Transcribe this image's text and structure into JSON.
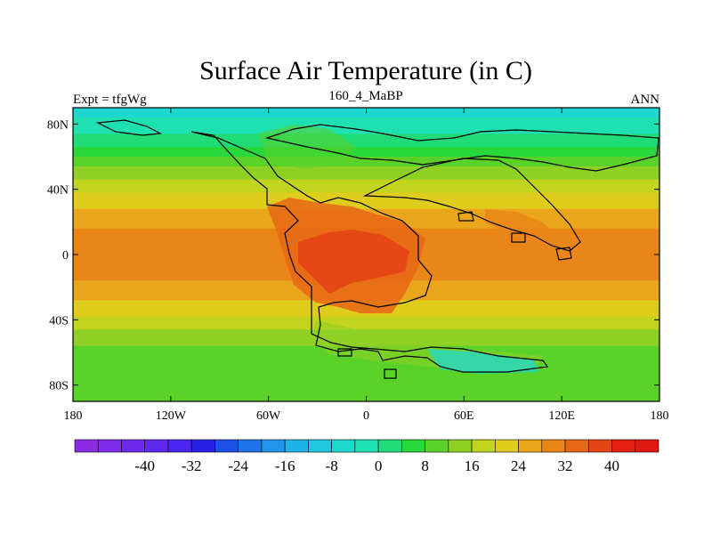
{
  "chart_data": {
    "type": "heatmap",
    "title": "Surface Air Temperature (in C)",
    "left_string": "Expt = tfgWg",
    "center_string": "160_4_MaBP",
    "right_string": "ANN",
    "x_ticks": [
      "180",
      "120W",
      "60W",
      "0",
      "60E",
      "120E",
      "180"
    ],
    "x_tick_values": [
      -180,
      -120,
      -60,
      0,
      60,
      120,
      180
    ],
    "y_ticks": [
      "80N",
      "40N",
      "0",
      "40S",
      "80S"
    ],
    "y_tick_values": [
      80,
      40,
      0,
      -40,
      -80
    ],
    "xlim": [
      -180,
      180
    ],
    "ylim": [
      -90,
      90
    ],
    "colorbar": {
      "labels": [
        "-40",
        "-32",
        "-24",
        "-16",
        "-8",
        "0",
        "8",
        "16",
        "24",
        "32",
        "40"
      ],
      "label_values": [
        -40,
        -32,
        -24,
        -16,
        -8,
        0,
        8,
        16,
        24,
        32,
        40
      ],
      "levels": [
        -48,
        -44,
        -40,
        -36,
        -32,
        -28,
        -24,
        -20,
        -16,
        -12,
        -8,
        -4,
        0,
        4,
        8,
        12,
        16,
        20,
        24,
        28,
        32,
        36,
        40,
        44
      ],
      "colors": [
        "#8a2be2",
        "#7f2ae8",
        "#6f29ec",
        "#5f28ee",
        "#4b26f0",
        "#2a1fe6",
        "#1e4fe6",
        "#1f73e8",
        "#2095ea",
        "#1fb3e8",
        "#1ec8e2",
        "#1ed8d0",
        "#1fe0b0",
        "#20dc78",
        "#28d83a",
        "#5ad22a",
        "#8ed024",
        "#c2d41e",
        "#e0cc1c",
        "#eaa61a",
        "#ea8618",
        "#e86616",
        "#e64414",
        "#e42010",
        "#e01a10"
      ]
    },
    "zonal_temperature_C": {
      "latitudes": [
        90,
        80,
        70,
        60,
        50,
        40,
        30,
        20,
        10,
        0,
        -10,
        -20,
        -30,
        -40,
        -50,
        -60,
        -70,
        -80,
        -90
      ],
      "values": [
        -6,
        -3,
        2,
        8,
        14,
        19,
        23,
        27,
        29,
        29,
        29,
        27,
        23,
        19,
        14,
        10,
        8,
        10,
        8
      ]
    }
  }
}
